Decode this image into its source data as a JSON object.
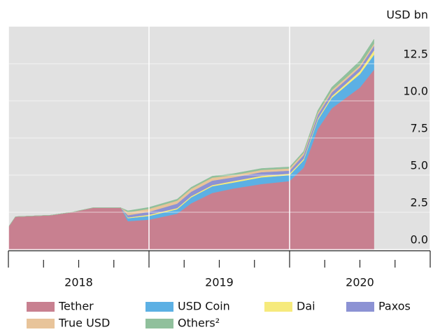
{
  "chart_data": {
    "type": "stacked_area",
    "unit_label": "USD bn",
    "x": [
      2018.0,
      2018.05,
      2018.3,
      2018.45,
      2018.6,
      2018.8,
      2018.85,
      2019.0,
      2019.2,
      2019.3,
      2019.45,
      2019.6,
      2019.8,
      2020.0,
      2020.1,
      2020.2,
      2020.3,
      2020.4,
      2020.5,
      2020.6
    ],
    "series": [
      {
        "name": "Tether",
        "color": "#c88090",
        "values": [
          1.5,
          2.2,
          2.3,
          2.5,
          2.8,
          2.8,
          1.9,
          2.0,
          2.4,
          3.1,
          3.8,
          4.1,
          4.4,
          4.6,
          5.5,
          8.1,
          9.5,
          10.2,
          10.9,
          12.1
        ]
      },
      {
        "name": "USD Coin",
        "color": "#5cb0e4",
        "values": [
          0,
          0,
          0,
          0,
          0,
          0,
          0.2,
          0.25,
          0.3,
          0.4,
          0.45,
          0.4,
          0.45,
          0.4,
          0.5,
          0.6,
          0.7,
          0.8,
          0.9,
          1.0
        ]
      },
      {
        "name": "Dai",
        "color": "#f6ea7c",
        "values": [
          0,
          0,
          0,
          0,
          0,
          0,
          0.05,
          0.08,
          0.08,
          0.08,
          0.08,
          0.1,
          0.1,
          0.1,
          0.1,
          0.1,
          0.12,
          0.15,
          0.2,
          0.3
        ]
      },
      {
        "name": "Paxos",
        "color": "#8c92d4",
        "values": [
          0,
          0,
          0,
          0,
          0,
          0,
          0.15,
          0.2,
          0.3,
          0.3,
          0.3,
          0.25,
          0.25,
          0.2,
          0.25,
          0.25,
          0.25,
          0.25,
          0.25,
          0.3
        ]
      },
      {
        "name": "True USD",
        "color": "#e8c49a",
        "values": [
          0,
          0,
          0,
          0,
          0,
          0,
          0.2,
          0.2,
          0.2,
          0.2,
          0.2,
          0.15,
          0.15,
          0.15,
          0.15,
          0.15,
          0.15,
          0.15,
          0.15,
          0.15
        ]
      },
      {
        "name": "Others²",
        "color": "#90c09c",
        "values": [
          0,
          0,
          0,
          0,
          0,
          0,
          0.1,
          0.1,
          0.1,
          0.1,
          0.1,
          0.1,
          0.1,
          0.1,
          0.1,
          0.15,
          0.2,
          0.25,
          0.3,
          0.3
        ]
      }
    ],
    "xlim": [
      2018,
      2021
    ],
    "xticks": [
      2018,
      2019,
      2020,
      2021
    ],
    "xminorticks": [
      2018.25,
      2018.5,
      2018.75,
      2019.25,
      2019.5,
      2019.75,
      2020.25,
      2020.5,
      2020.75
    ],
    "xlabels": [
      {
        "value": 2018.5,
        "label": "2018"
      },
      {
        "value": 2019.5,
        "label": "2019"
      },
      {
        "value": 2020.5,
        "label": "2020"
      }
    ],
    "ylim": [
      0,
      15
    ],
    "yticks": [
      {
        "value": 0,
        "label": "0.0"
      },
      2.5,
      {
        "value": 5,
        "label": "5.0"
      },
      7.5,
      {
        "value": 10,
        "label": "10.0"
      },
      12.5
    ],
    "grid": true,
    "legend": "bottom"
  }
}
